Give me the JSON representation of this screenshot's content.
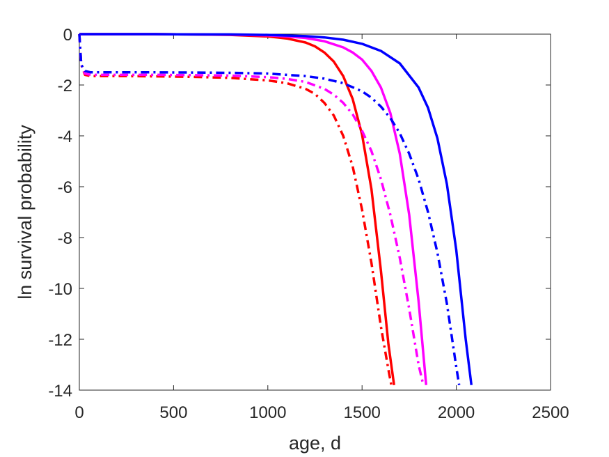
{
  "chart_data": {
    "type": "line",
    "title": "",
    "xlabel": "age, d",
    "ylabel": "ln survival probability",
    "xlim": [
      0,
      2500
    ],
    "ylim": [
      -14,
      0
    ],
    "xticks": [
      0,
      500,
      1000,
      1500,
      2000,
      2500
    ],
    "xtick_labels": [
      "0",
      "500",
      "1000",
      "1500",
      "2000",
      "2500"
    ],
    "yticks": [
      0,
      -2,
      -4,
      -6,
      -8,
      -10,
      -12,
      -14
    ],
    "ytick_labels": [
      "0",
      "-2",
      "-4",
      "-6",
      "-8",
      "-10",
      "-12",
      "-14"
    ],
    "grid": false,
    "legend": "none",
    "series": [
      {
        "color": "#ff0000",
        "style": "solid",
        "x": [
          0,
          200,
          400,
          600,
          800,
          1000,
          1100,
          1200,
          1250,
          1300,
          1350,
          1400,
          1450,
          1500,
          1550,
          1600,
          1640,
          1670
        ],
        "y": [
          0,
          0,
          0,
          -0.01,
          -0.03,
          -0.09,
          -0.17,
          -0.33,
          -0.48,
          -0.72,
          -1.08,
          -1.65,
          -2.55,
          -3.95,
          -6.1,
          -9.3,
          -12.2,
          -13.8
        ]
      },
      {
        "color": "#ff00ff",
        "style": "solid",
        "x": [
          0,
          200,
          400,
          600,
          800,
          1000,
          1100,
          1200,
          1300,
          1400,
          1450,
          1500,
          1550,
          1600,
          1650,
          1700,
          1750,
          1800,
          1840
        ],
        "y": [
          0,
          0,
          0,
          -0.01,
          -0.02,
          -0.05,
          -0.09,
          -0.15,
          -0.28,
          -0.52,
          -0.72,
          -1.0,
          -1.45,
          -2.1,
          -3.1,
          -4.7,
          -7.1,
          -10.5,
          -13.8
        ]
      },
      {
        "color": "#0000ff",
        "style": "solid",
        "x": [
          0,
          200,
          400,
          600,
          800,
          1000,
          1200,
          1300,
          1400,
          1500,
          1600,
          1700,
          1800,
          1850,
          1900,
          1950,
          2000,
          2050,
          2080
        ],
        "y": [
          0,
          0,
          0,
          -0.01,
          -0.01,
          -0.03,
          -0.08,
          -0.13,
          -0.22,
          -0.38,
          -0.66,
          -1.15,
          -2.1,
          -2.9,
          -4.1,
          -5.9,
          -8.5,
          -12.0,
          -13.8
        ]
      },
      {
        "color": "#ff0000",
        "style": "dashdot",
        "x": [
          0,
          10,
          30,
          60,
          200,
          400,
          600,
          800,
          1000,
          1100,
          1200,
          1250,
          1300,
          1350,
          1400,
          1450,
          1500,
          1550,
          1600,
          1640,
          1655
        ],
        "y": [
          0,
          -1.2,
          -1.6,
          -1.65,
          -1.65,
          -1.66,
          -1.68,
          -1.72,
          -1.82,
          -1.93,
          -2.15,
          -2.35,
          -2.7,
          -3.2,
          -4.0,
          -5.2,
          -6.9,
          -9.0,
          -11.5,
          -13.2,
          -13.8
        ]
      },
      {
        "color": "#ff00ff",
        "style": "dashdot",
        "x": [
          0,
          10,
          30,
          60,
          200,
          400,
          600,
          800,
          1000,
          1100,
          1200,
          1300,
          1350,
          1400,
          1450,
          1500,
          1550,
          1600,
          1650,
          1700,
          1750,
          1800,
          1825
        ],
        "y": [
          0,
          -1.2,
          -1.55,
          -1.6,
          -1.6,
          -1.6,
          -1.61,
          -1.63,
          -1.69,
          -1.76,
          -1.88,
          -2.15,
          -2.38,
          -2.7,
          -3.15,
          -3.8,
          -4.6,
          -5.7,
          -7.1,
          -8.8,
          -10.8,
          -13.0,
          -13.8
        ]
      },
      {
        "color": "#0000ff",
        "style": "dashdot",
        "x": [
          0,
          10,
          30,
          60,
          200,
          400,
          600,
          800,
          1000,
          1200,
          1300,
          1400,
          1500,
          1550,
          1600,
          1650,
          1700,
          1750,
          1800,
          1850,
          1900,
          1950,
          2000,
          2015
        ],
        "y": [
          0,
          -1.2,
          -1.45,
          -1.5,
          -1.5,
          -1.5,
          -1.51,
          -1.52,
          -1.55,
          -1.65,
          -1.75,
          -1.93,
          -2.25,
          -2.5,
          -2.85,
          -3.3,
          -3.9,
          -4.7,
          -5.7,
          -7.0,
          -8.6,
          -10.6,
          -13.1,
          -13.8
        ]
      }
    ]
  }
}
